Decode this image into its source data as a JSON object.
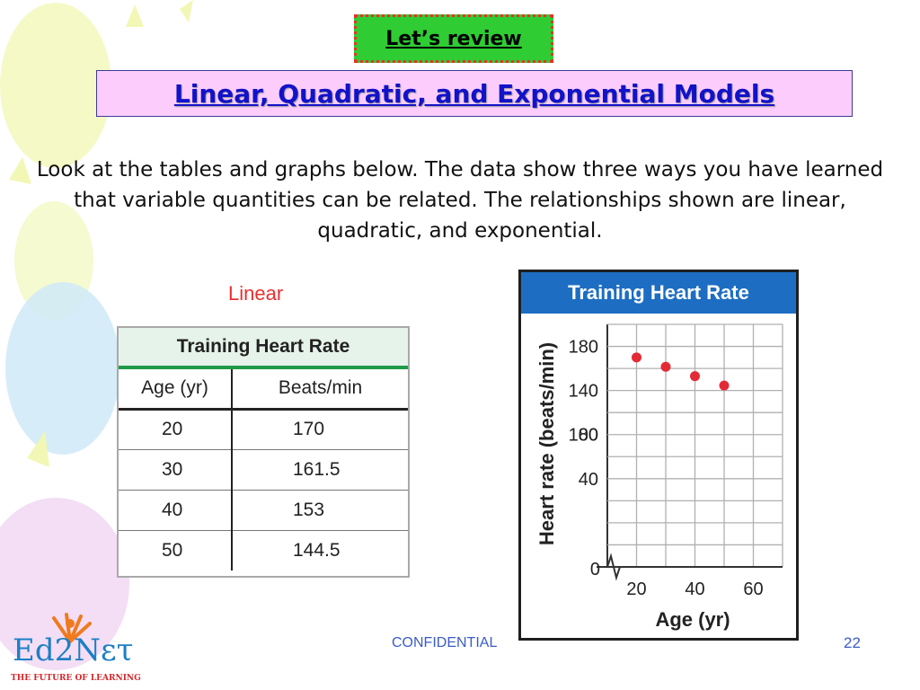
{
  "header": {
    "review_label": "Let’s review",
    "slide_title": "Linear, Quadratic, and Exponential Models"
  },
  "intro_text": "Look at the tables and graphs below. The data show three ways you have learned that variable quantities can be related. The relationships shown are linear, quadratic, and exponential.",
  "linear_label": "Linear",
  "table": {
    "title": "Training Heart Rate",
    "columns": [
      "Age (yr)",
      "Beats/min"
    ],
    "rows": [
      [
        "20",
        "170"
      ],
      [
        "30",
        "161.5"
      ],
      [
        "40",
        "153"
      ],
      [
        "50",
        "144.5"
      ]
    ]
  },
  "chart_data": {
    "type": "scatter",
    "title": "Training Heart Rate",
    "xlabel": "Age (yr)",
    "ylabel": "Heart rate (beats/min)",
    "x": [
      20,
      30,
      40,
      50
    ],
    "y": [
      170,
      161.5,
      153,
      144.5
    ],
    "x_ticks": [
      "20",
      "40",
      "60"
    ],
    "y_ticks": [
      "0",
      "40",
      "80",
      "100",
      "140",
      "180"
    ],
    "grid": true,
    "point_color": "#e32b36",
    "title_bg_color": "#1d6ec2"
  },
  "footer": {
    "confidential": "CONFIDENTIAL",
    "page_number": "22",
    "logo_text": "Ed2Nετ",
    "logo_tagline": "THE FUTURE OF LEARNING"
  }
}
